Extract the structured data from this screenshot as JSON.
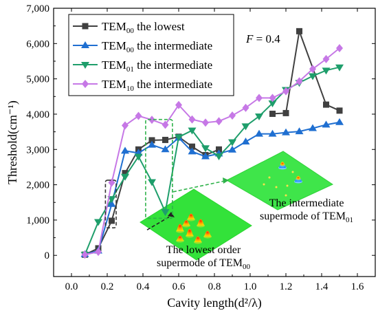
{
  "chart_data": {
    "type": "line",
    "xlabel": "Cavity length(d²/λ)",
    "ylabel": "Threshold(cm⁻¹)",
    "xlim": [
      -0.1,
      1.7
    ],
    "ylim": [
      -600,
      7000
    ],
    "xticks": [
      0.0,
      0.2,
      0.4,
      0.6,
      0.8,
      1.0,
      1.2,
      1.4,
      1.6
    ],
    "xtick_labels": [
      "0.0",
      "0.2",
      "0.4",
      "0.6",
      "0.8",
      "1.0",
      "1.2",
      "1.4",
      "1.6"
    ],
    "yticks": [
      0,
      1000,
      2000,
      3000,
      4000,
      5000,
      6000,
      7000
    ],
    "ytick_labels": [
      "0",
      "1,000",
      "2,000",
      "3,000",
      "4,000",
      "5,000",
      "6,000",
      "7,000"
    ],
    "grid": false,
    "legend_position": "top-left",
    "series": [
      {
        "name_main": "TEM",
        "name_sub": "00",
        "name_rest": " the lowest",
        "color": "#404040",
        "marker": "square",
        "points": [
          [
            0.075,
            20
          ],
          [
            0.15,
            200
          ],
          [
            0.225,
            980
          ],
          [
            0.3,
            2330
          ],
          [
            0.375,
            3000
          ],
          [
            0.45,
            3260
          ],
          [
            0.525,
            3270
          ],
          [
            0.6,
            3360
          ],
          [
            0.675,
            3080
          ],
          [
            0.75,
            2840
          ],
          [
            0.825,
            3000
          ],
          null,
          [
            1.125,
            4010
          ],
          [
            1.2,
            4030
          ],
          [
            1.275,
            6350
          ],
          [
            1.425,
            4270
          ],
          [
            1.5,
            4100
          ]
        ]
      },
      {
        "name_main": "TEM",
        "name_sub": "00",
        "name_rest": " the intermediate",
        "color": "#1f6fd1",
        "marker": "triangle-up",
        "points": [
          [
            0.075,
            30
          ],
          [
            0.15,
            130
          ],
          [
            0.225,
            1450
          ],
          [
            0.3,
            2960
          ],
          [
            0.375,
            2900
          ],
          [
            0.45,
            3130
          ],
          [
            0.525,
            3000
          ],
          [
            0.6,
            3330
          ],
          [
            0.675,
            2940
          ],
          [
            0.75,
            2800
          ],
          [
            0.825,
            2880
          ],
          [
            0.9,
            2990
          ],
          [
            0.975,
            3220
          ],
          [
            1.05,
            3440
          ],
          [
            1.125,
            3440
          ],
          [
            1.2,
            3480
          ],
          [
            1.275,
            3510
          ],
          [
            1.35,
            3600
          ],
          [
            1.425,
            3700
          ],
          [
            1.5,
            3770
          ]
        ]
      },
      {
        "name_main": "TEM",
        "name_sub": "01",
        "name_rest": " the intermediate",
        "color": "#1e9e6b",
        "marker": "triangle-down",
        "points": [
          [
            0.075,
            20
          ],
          [
            0.15,
            950
          ],
          [
            0.225,
            1600
          ],
          [
            0.3,
            2230
          ],
          [
            0.375,
            2800
          ],
          [
            0.45,
            2080
          ],
          [
            0.525,
            1230
          ],
          [
            0.6,
            3350
          ],
          [
            0.675,
            3540
          ],
          [
            0.75,
            3040
          ],
          [
            0.825,
            2810
          ],
          [
            0.9,
            3210
          ],
          [
            0.975,
            3660
          ],
          [
            1.05,
            3940
          ],
          [
            1.125,
            4310
          ],
          [
            1.2,
            4690
          ],
          [
            1.275,
            4890
          ],
          [
            1.35,
            5080
          ],
          [
            1.425,
            5240
          ],
          [
            1.5,
            5330
          ]
        ]
      },
      {
        "name_main": "TEM",
        "name_sub": "10",
        "name_rest": " the intermediate",
        "color": "#c678e6",
        "marker": "diamond",
        "points": [
          [
            0.075,
            20
          ],
          [
            0.15,
            100
          ],
          [
            0.225,
            2060
          ],
          [
            0.3,
            3680
          ],
          [
            0.375,
            3950
          ],
          [
            0.45,
            3840
          ],
          [
            0.525,
            3700
          ],
          [
            0.6,
            4260
          ],
          [
            0.675,
            3850
          ],
          [
            0.75,
            3760
          ],
          [
            0.825,
            3800
          ],
          [
            0.9,
            3960
          ],
          [
            0.975,
            4180
          ],
          [
            1.05,
            4460
          ],
          [
            1.125,
            4460
          ],
          [
            1.2,
            4650
          ],
          [
            1.275,
            4930
          ],
          [
            1.35,
            5280
          ],
          [
            1.425,
            5560
          ],
          [
            1.5,
            5870
          ]
        ]
      }
    ],
    "annotations": {
      "f_label": "F",
      "f_value": " = 0.4",
      "inset_lowest_line1": "The lowest order",
      "inset_lowest_line2": "supermode of TEM",
      "inset_lowest_sub": "00",
      "inset_inter_line1": "The intermediate",
      "inset_inter_line2": "supermode of TEM",
      "inset_inter_sub": "01"
    }
  }
}
